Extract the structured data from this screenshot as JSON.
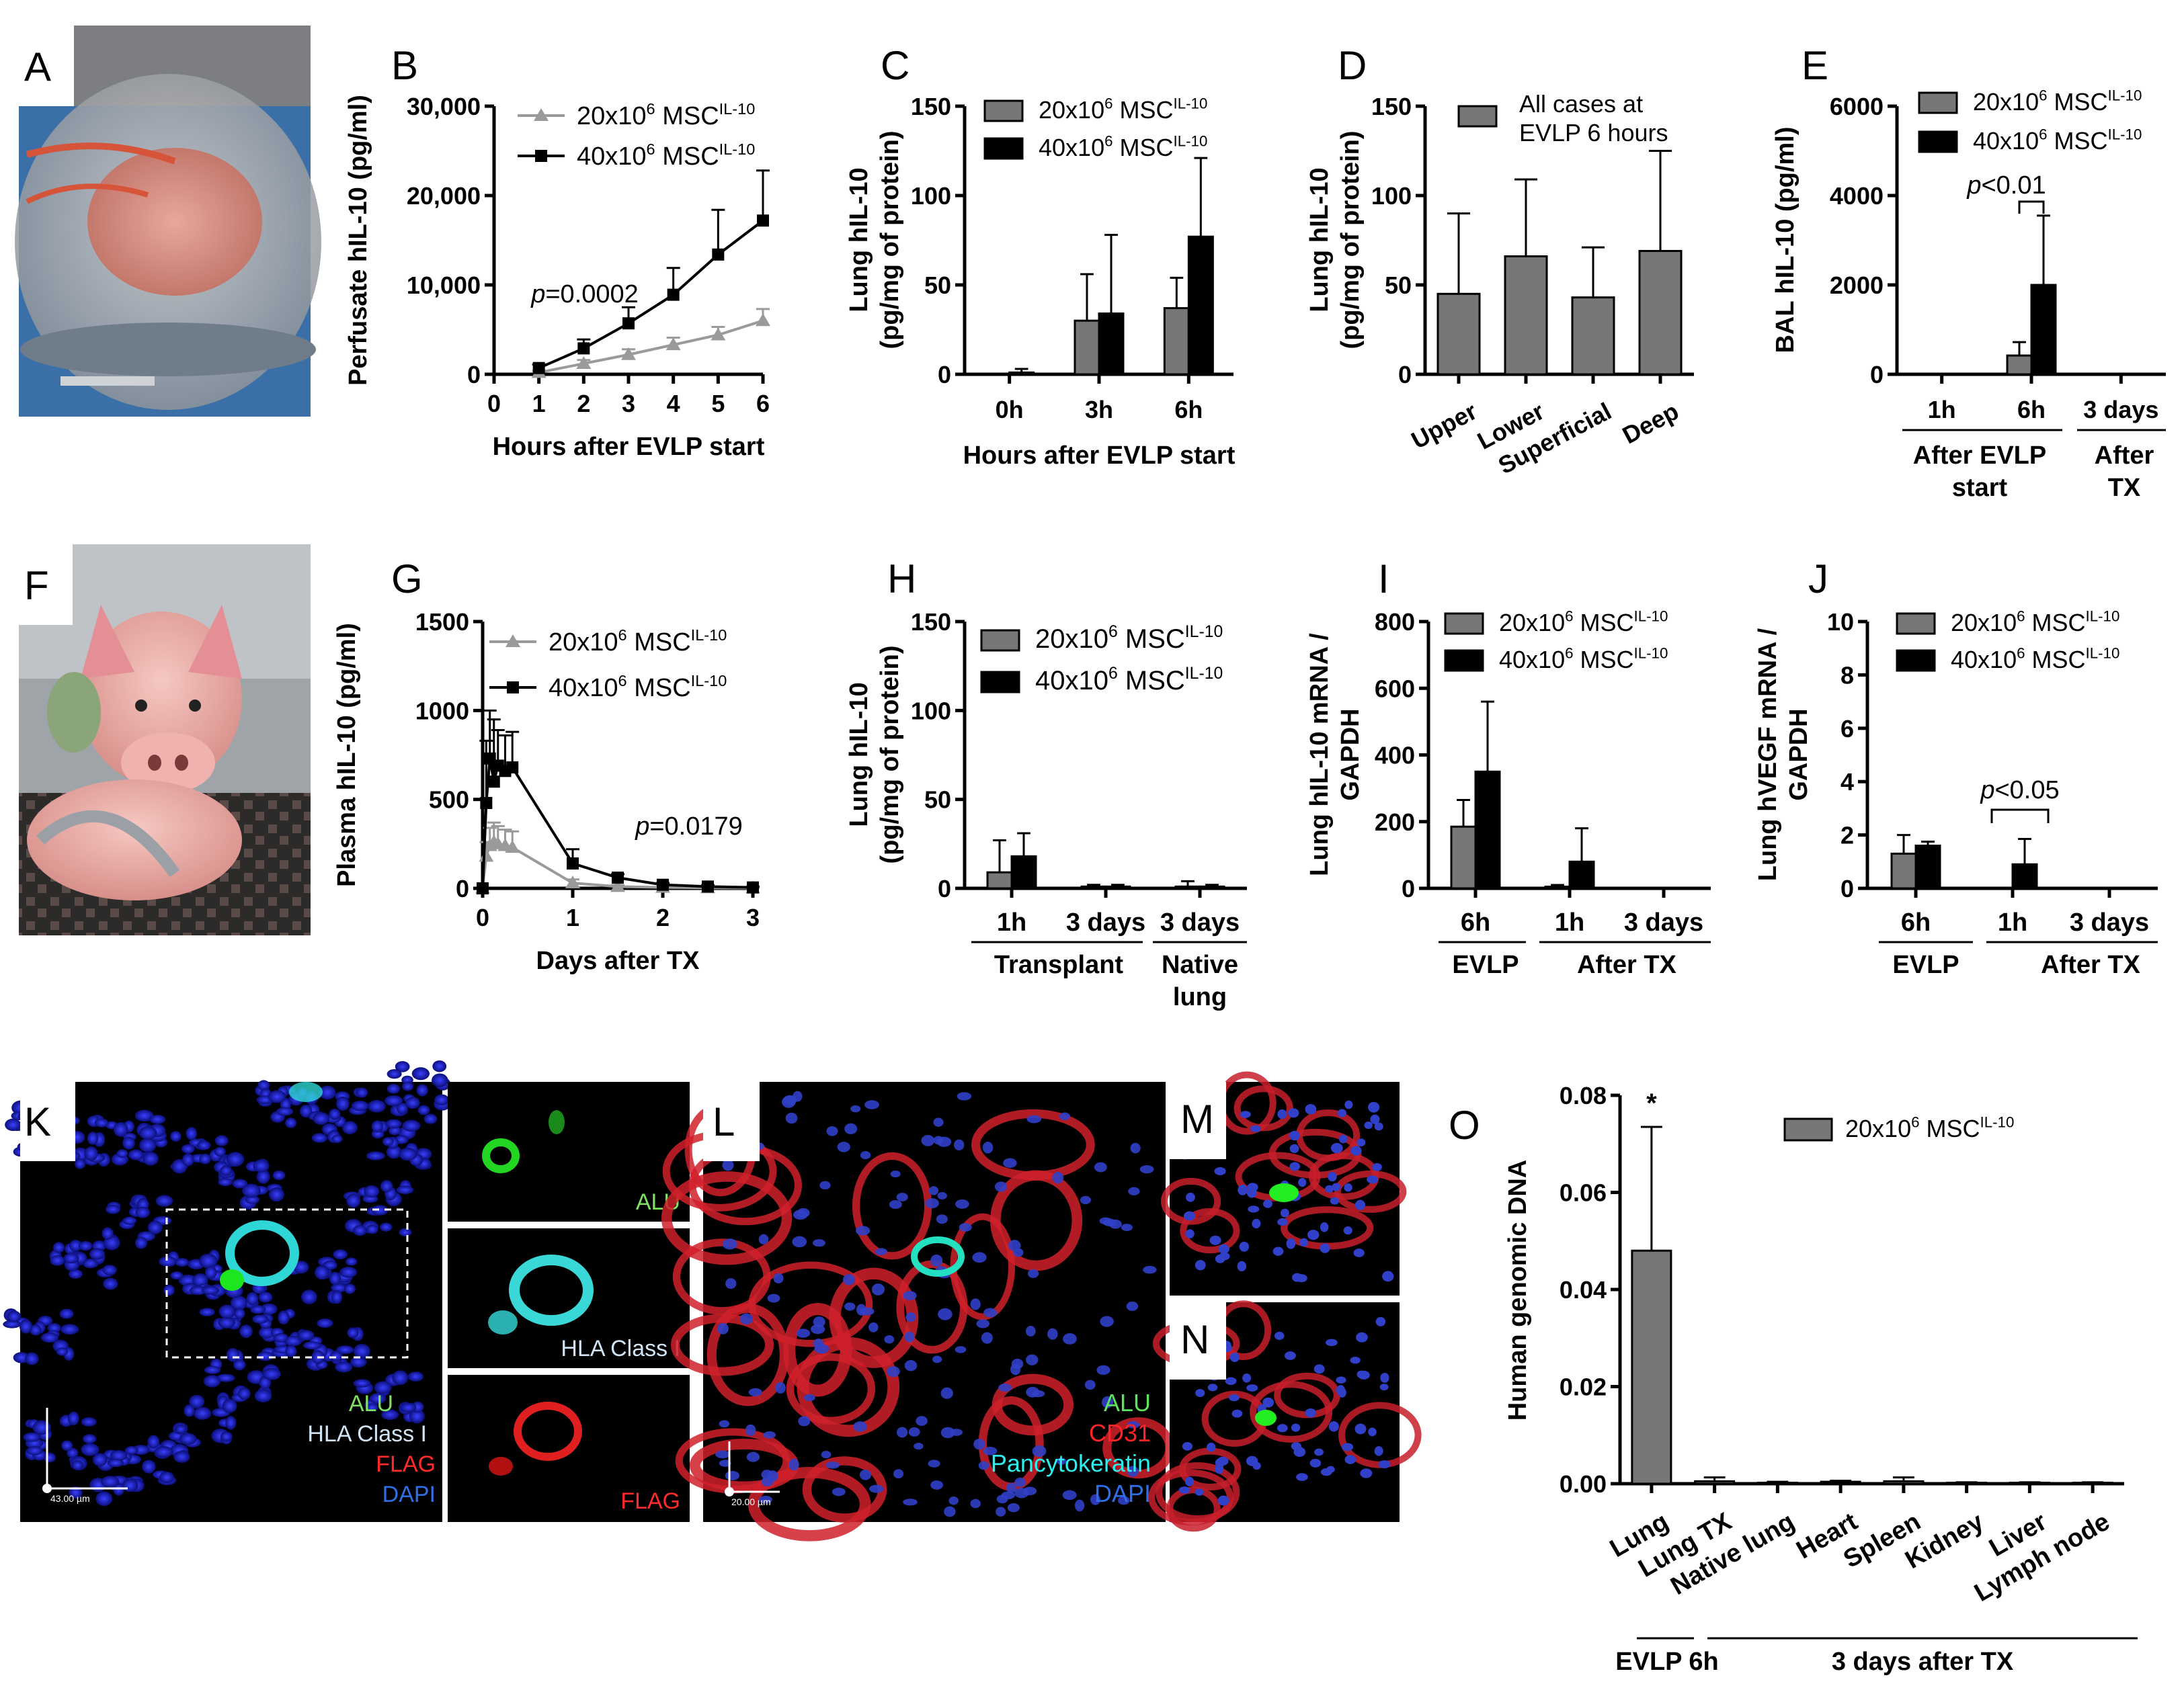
{
  "panels": [
    "A",
    "B",
    "C",
    "D",
    "E",
    "F",
    "G",
    "H",
    "I",
    "J",
    "K",
    "L",
    "M",
    "N",
    "O"
  ],
  "colors": {
    "gray": "#777777",
    "black": "#000000",
    "light_gray": "#9a9a9a"
  },
  "legend": {
    "low_prefix": "20x10",
    "high_prefix": "40x10",
    "exp": "6",
    "msc": "MSC",
    "sup": "IL-10"
  },
  "chart_data": [
    {
      "id": "B",
      "type": "line",
      "xlabel": "Hours after EVLP start",
      "ylabel": "Perfusate hIL-10 (pg/ml)",
      "xlim": [
        0,
        6
      ],
      "ylim": [
        0,
        30000
      ],
      "x_ticks": [
        "0",
        "1",
        "2",
        "3",
        "4",
        "5",
        "6"
      ],
      "y_ticks": [
        "0",
        "10,000",
        "20,000",
        "30,000"
      ],
      "x": [
        1,
        2,
        3,
        4,
        5,
        6
      ],
      "series": [
        {
          "name": "20x10^6 MSC IL-10",
          "values": [
            200,
            1200,
            2200,
            3300,
            4400,
            6000
          ],
          "errors": [
            200,
            400,
            600,
            800,
            900,
            1300
          ]
        },
        {
          "name": "40x10^6 MSC IL-10",
          "values": [
            700,
            2900,
            5700,
            8900,
            13400,
            17200
          ],
          "errors": [
            400,
            1000,
            1800,
            3000,
            5000,
            5600
          ]
        }
      ],
      "annotation_p": "p",
      "annotation_value": "=0.0002"
    },
    {
      "id": "C",
      "type": "bar",
      "xlabel": "Hours after EVLP start",
      "ylabel1": "Lung hIL-10",
      "ylabel2": "(pg/mg of protein)",
      "ylim": [
        0,
        150
      ],
      "y_ticks": [
        "0",
        "50",
        "100",
        "150"
      ],
      "categories": [
        "0h",
        "3h",
        "6h"
      ],
      "series": [
        {
          "name": "20x10^6 MSC IL-10",
          "values": [
            0,
            30,
            37
          ],
          "errors": [
            0,
            26,
            17
          ]
        },
        {
          "name": "40x10^6 MSC IL-10",
          "values": [
            1,
            34,
            77
          ],
          "errors": [
            2,
            44,
            44
          ]
        }
      ]
    },
    {
      "id": "D",
      "type": "bar",
      "ylabel1": "Lung hIL-10",
      "ylabel2": "(pg/mg of protein)",
      "ylim": [
        0,
        150
      ],
      "y_ticks": [
        "0",
        "50",
        "100",
        "150"
      ],
      "categories": [
        "Upper",
        "Lower",
        "Superficial",
        "Deep"
      ],
      "legend1": "All cases at",
      "legend2": "EVLP 6 hours",
      "values": [
        45,
        66,
        43,
        69
      ],
      "errors": [
        45,
        43,
        28,
        56
      ]
    },
    {
      "id": "E",
      "type": "bar",
      "ylabel": "BAL hIL-10 (pg/ml)",
      "ylim": [
        0,
        6000
      ],
      "y_ticks": [
        "0",
        "2000",
        "4000",
        "6000"
      ],
      "categories": [
        "1h",
        "6h",
        "3 days"
      ],
      "group1_a": "After EVLP",
      "group1_b": "start",
      "group2_a": "After",
      "group2_b": "TX",
      "series": [
        {
          "name": "20x10^6 MSC IL-10",
          "values": [
            0,
            420,
            0
          ],
          "errors": [
            0,
            300,
            0
          ]
        },
        {
          "name": "40x10^6 MSC IL-10",
          "values": [
            0,
            2000,
            0
          ],
          "errors": [
            0,
            1550,
            0
          ]
        }
      ],
      "annotation_p": "p",
      "annotation_value": "<0.01"
    },
    {
      "id": "G",
      "type": "line",
      "xlabel": "Days after TX",
      "ylabel": "Plasma hIL-10 (pg/ml)",
      "xlim": [
        0,
        3
      ],
      "ylim": [
        0,
        1500
      ],
      "x_ticks": [
        "0",
        "1",
        "2",
        "3"
      ],
      "y_ticks": [
        "0",
        "500",
        "1000",
        "1500"
      ],
      "series": [
        {
          "name": "20x10^6 MSC IL-10",
          "x": [
            0,
            0.04,
            0.08,
            0.125,
            0.17,
            0.25,
            0.33,
            1,
            1.5,
            2,
            2.5,
            3
          ],
          "values": [
            0,
            180,
            240,
            260,
            250,
            240,
            230,
            30,
            10,
            5,
            3,
            2
          ],
          "errors": [
            0,
            80,
            100,
            110,
            100,
            90,
            90,
            20,
            8,
            4,
            2,
            1
          ]
        },
        {
          "name": "40x10^6 MSC IL-10",
          "x": [
            0,
            0.04,
            0.08,
            0.125,
            0.17,
            0.25,
            0.33,
            1,
            1.5,
            2,
            2.5,
            3
          ],
          "values": [
            0,
            480,
            730,
            600,
            690,
            660,
            680,
            140,
            60,
            20,
            10,
            5
          ],
          "errors": [
            0,
            350,
            270,
            350,
            200,
            200,
            200,
            80,
            20,
            10,
            8,
            5
          ]
        }
      ],
      "annotation_p": "p",
      "annotation_value": "=0.0179"
    },
    {
      "id": "H",
      "type": "bar",
      "ylabel1": "Lung hIL-10",
      "ylabel2": "(pg/mg of protein)",
      "ylim": [
        0,
        150
      ],
      "y_ticks": [
        "0",
        "50",
        "100",
        "150"
      ],
      "categories": [
        "1h",
        "3 days",
        "3 days"
      ],
      "group1": "Transplant",
      "group2_a": "Native",
      "group2_b": "lung",
      "series": [
        {
          "name": "20x10^6 MSC IL-10",
          "values": [
            9,
            1,
            1
          ],
          "errors": [
            18,
            1,
            3
          ]
        },
        {
          "name": "40x10^6 MSC IL-10",
          "values": [
            18,
            1,
            1
          ],
          "errors": [
            13,
            1,
            1
          ]
        }
      ]
    },
    {
      "id": "I",
      "type": "bar",
      "ylabel1": "Lung hIL-10 mRNA /",
      "ylabel2": "GAPDH",
      "ylim": [
        0,
        800
      ],
      "y_ticks": [
        "0",
        "200",
        "400",
        "600",
        "800"
      ],
      "categories": [
        "6h",
        "1h",
        "3 days"
      ],
      "group1": "EVLP",
      "group2": "After TX",
      "series": [
        {
          "name": "20x10^6 MSC IL-10",
          "values": [
            185,
            5,
            0
          ],
          "errors": [
            80,
            5,
            0
          ]
        },
        {
          "name": "40x10^6 MSC IL-10",
          "values": [
            350,
            80,
            0
          ],
          "errors": [
            210,
            100,
            0
          ]
        }
      ]
    },
    {
      "id": "J",
      "type": "bar",
      "ylabel1": "Lung hVEGF mRNA /",
      "ylabel2": "GAPDH",
      "ylim": [
        0,
        10
      ],
      "y_ticks": [
        "0",
        "2",
        "4",
        "6",
        "8",
        "10"
      ],
      "categories": [
        "6h",
        "1h",
        "3 days"
      ],
      "group1": "EVLP",
      "group2": "After TX",
      "series": [
        {
          "name": "20x10^6 MSC IL-10",
          "values": [
            1.3,
            0,
            0
          ],
          "errors": [
            0.7,
            0,
            0
          ]
        },
        {
          "name": "40x10^6 MSC IL-10",
          "values": [
            1.6,
            0.9,
            0
          ],
          "errors": [
            0.15,
            0.95,
            0
          ]
        }
      ],
      "annotation_p": "p",
      "annotation_value": "<0.05"
    },
    {
      "id": "O",
      "type": "bar",
      "ylabel": "Human genomic DNA",
      "ylim": [
        0,
        0.08
      ],
      "y_ticks": [
        "0.00",
        "0.02",
        "0.04",
        "0.06",
        "0.08"
      ],
      "categories": [
        "Lung",
        "Lung TX",
        "Native lung",
        "Heart",
        "Spleen",
        "Kidney",
        "Liver",
        "Lymph node"
      ],
      "group1": "EVLP 6h",
      "group2": "3 days after TX",
      "series": [
        {
          "name": "20x10^6 MSC IL-10",
          "values": [
            0.048,
            0.0005,
            0.0002,
            0.0004,
            0.0005,
            0.0002,
            0.0002,
            0.0002
          ],
          "errors": [
            0.0255,
            0.0008,
            0.0002,
            0.0002,
            0.0008,
            0.0001,
            0.0001,
            0.0001
          ]
        }
      ],
      "star": "*"
    }
  ],
  "micro": {
    "K": {
      "alu": "ALU",
      "hla": "HLA Class I",
      "flag": "FLAG",
      "dapi": "DAPI",
      "scale": "43.00 µm"
    },
    "L": {
      "alu": "ALU",
      "cd31": "CD31",
      "pck": "Pancytokeratin",
      "dapi": "DAPI",
      "scale": "20.00 µm"
    }
  }
}
